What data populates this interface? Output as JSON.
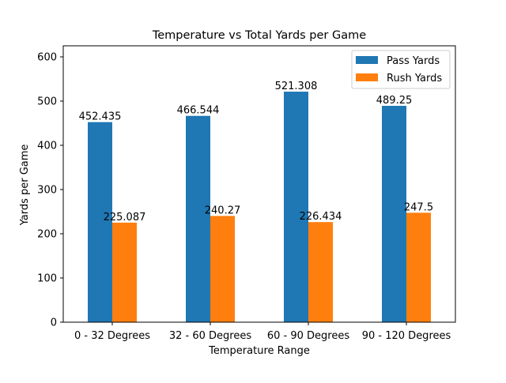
{
  "chart_data": {
    "type": "bar",
    "title": "Temperature vs Total Yards per Game",
    "xlabel": "Temperature Range",
    "ylabel": "Yards per Game",
    "categories": [
      "0 - 32 Degrees",
      "32 - 60 Degrees",
      "60 - 90 Degrees",
      "90 - 120 Degrees"
    ],
    "series": [
      {
        "name": "Pass Yards",
        "color": "#1f77b4",
        "values": [
          452.435,
          466.544,
          521.308,
          489.25
        ],
        "labels": [
          "452.435",
          "466.544",
          "521.308",
          "489.25"
        ]
      },
      {
        "name": "Rush Yards",
        "color": "#ff7f0e",
        "values": [
          225.087,
          240.27,
          226.434,
          247.5
        ],
        "labels": [
          "225.087",
          "240.27",
          "226.434",
          "247.5"
        ]
      }
    ],
    "ylim": [
      0,
      625
    ],
    "yticks": [
      0,
      100,
      200,
      300,
      400,
      500,
      600
    ],
    "grid": false,
    "legend_position": "top-right"
  }
}
